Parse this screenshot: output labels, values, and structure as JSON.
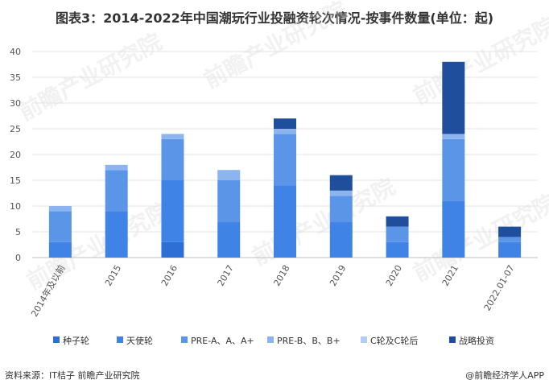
{
  "chart_data": {
    "type": "bar",
    "stacked": true,
    "title": "图表3：2014-2022年中国潮玩行业投融资轮次情况-按事件数量(单位：起)",
    "categories": [
      "2014年及以前",
      "2015",
      "2016",
      "2017",
      "2018",
      "2019",
      "2020",
      "2021",
      "2022.01-07"
    ],
    "ylim": [
      0,
      40
    ],
    "yticks": [
      0,
      5,
      10,
      15,
      20,
      25,
      30,
      35,
      40
    ],
    "grid": true,
    "legend_position": "bottom",
    "series": [
      {
        "name": "种子轮",
        "color": "#2e6fd6",
        "values": [
          0,
          0,
          3,
          0,
          0,
          0,
          0,
          0,
          0
        ]
      },
      {
        "name": "天使轮",
        "color": "#3f83e6",
        "values": [
          3,
          9,
          12,
          7,
          14,
          7,
          3,
          11,
          3
        ]
      },
      {
        "name": "PRE-A、A、A+",
        "color": "#5b95e8",
        "values": [
          6,
          8,
          8,
          8,
          10,
          5,
          3,
          12,
          1
        ]
      },
      {
        "name": "PRE-B、B、B+",
        "color": "#8cb5f0",
        "values": [
          1,
          1,
          1,
          2,
          1,
          1,
          0,
          1,
          0
        ]
      },
      {
        "name": "C轮及C轮后",
        "color": "#b3ceF5",
        "values": [
          0,
          0,
          0,
          0,
          0,
          0,
          0,
          0,
          0
        ]
      },
      {
        "name": "战略投资",
        "color": "#1f4e9c",
        "values": [
          0,
          0,
          0,
          0,
          2,
          3,
          2,
          14,
          2
        ]
      }
    ]
  },
  "footer": {
    "source": "资料来源：IT桔子 前瞻产业研究院",
    "brand": "@前瞻经济学人APP"
  },
  "watermark": {
    "text": "前瞻产业研究院"
  }
}
